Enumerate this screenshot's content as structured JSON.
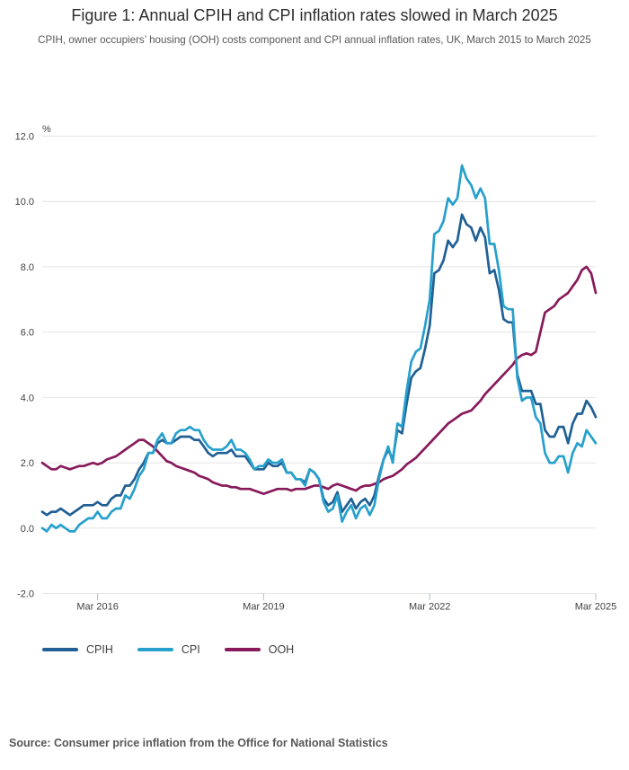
{
  "chart_data": {
    "type": "line",
    "title": "Figure 1: Annual CPIH and CPI inflation rates slowed in March 2025",
    "subtitle": "CPIH, owner occupiers’ housing (OOH) costs component and CPI annual inflation rates, UK, March 2015 to March 2025",
    "ylabel": "%",
    "x_unit": "month",
    "x_start_label": "Mar 2015",
    "x_end_label": "Mar 2025",
    "grid": "horizontal",
    "legend_position": "bottom-left",
    "x_axis": {
      "tick_labels": [
        "Mar 2016",
        "Mar 2019",
        "Mar 2022",
        "Mar 2025"
      ],
      "tick_month_indices": [
        12,
        48,
        84,
        120
      ]
    },
    "y_axis": {
      "min": -2.0,
      "max": 12.0,
      "tick_values": [
        -2,
        0,
        2,
        4,
        6,
        8,
        10,
        12
      ],
      "tick_labels": [
        "-2.0",
        "0.0",
        "2.0",
        "4.0",
        "6.0",
        "8.0",
        "10.0",
        "12.0"
      ]
    },
    "colors": {
      "cpih": "#206095",
      "cpi": "#27A0CC",
      "ooh": "#871A5B",
      "grid": "#e4e4e4",
      "tick": "#b7c0c7",
      "axis_text": "#414042"
    },
    "series": [
      {
        "name": "CPIH",
        "color": "#206095",
        "values": [
          0.5,
          0.4,
          0.5,
          0.5,
          0.6,
          0.5,
          0.4,
          0.5,
          0.6,
          0.7,
          0.7,
          0.7,
          0.8,
          0.7,
          0.7,
          0.9,
          1.0,
          1.0,
          1.3,
          1.3,
          1.5,
          1.8,
          2.0,
          2.3,
          2.3,
          2.6,
          2.7,
          2.6,
          2.6,
          2.7,
          2.8,
          2.8,
          2.8,
          2.7,
          2.7,
          2.5,
          2.3,
          2.2,
          2.3,
          2.3,
          2.3,
          2.4,
          2.2,
          2.2,
          2.2,
          2.0,
          1.8,
          1.8,
          1.8,
          2.0,
          1.9,
          1.9,
          2.0,
          1.7,
          1.7,
          1.5,
          1.5,
          1.4,
          1.8,
          1.7,
          1.5,
          0.9,
          0.7,
          0.8,
          1.1,
          0.5,
          0.7,
          0.9,
          0.6,
          0.8,
          0.9,
          0.7,
          1.0,
          1.6,
          2.1,
          2.4,
          2.1,
          3.0,
          2.9,
          3.8,
          4.6,
          4.8,
          4.9,
          5.5,
          6.2,
          7.8,
          7.9,
          8.2,
          8.8,
          8.6,
          8.8,
          9.6,
          9.3,
          9.2,
          8.8,
          9.2,
          8.9,
          7.8,
          7.9,
          7.3,
          6.4,
          6.3,
          6.3,
          4.7,
          4.2,
          4.2,
          4.2,
          3.8,
          3.8,
          3.0,
          2.8,
          2.8,
          3.1,
          3.1,
          2.6,
          3.2,
          3.5,
          3.5,
          3.9,
          3.7,
          3.4
        ]
      },
      {
        "name": "CPI",
        "color": "#27A0CC",
        "values": [
          0.0,
          -0.1,
          0.1,
          0.0,
          0.1,
          0.0,
          -0.1,
          -0.1,
          0.1,
          0.2,
          0.3,
          0.3,
          0.5,
          0.3,
          0.3,
          0.5,
          0.6,
          0.6,
          1.0,
          0.9,
          1.2,
          1.6,
          1.8,
          2.3,
          2.3,
          2.7,
          2.9,
          2.6,
          2.6,
          2.9,
          3.0,
          3.0,
          3.1,
          3.0,
          3.0,
          2.7,
          2.5,
          2.4,
          2.4,
          2.4,
          2.5,
          2.7,
          2.4,
          2.4,
          2.3,
          2.1,
          1.8,
          1.9,
          1.9,
          2.1,
          2.0,
          2.0,
          2.1,
          1.7,
          1.7,
          1.5,
          1.5,
          1.3,
          1.8,
          1.7,
          1.5,
          0.8,
          0.5,
          0.6,
          1.0,
          0.2,
          0.5,
          0.7,
          0.3,
          0.6,
          0.7,
          0.4,
          0.7,
          1.5,
          2.1,
          2.5,
          2.0,
          3.2,
          3.1,
          4.2,
          5.1,
          5.4,
          5.5,
          6.2,
          7.0,
          9.0,
          9.1,
          9.4,
          10.1,
          9.9,
          10.1,
          11.1,
          10.7,
          10.5,
          10.1,
          10.4,
          10.1,
          8.7,
          8.7,
          7.9,
          6.8,
          6.7,
          6.7,
          4.6,
          3.9,
          4.0,
          4.0,
          3.4,
          3.2,
          2.3,
          2.0,
          2.0,
          2.2,
          2.2,
          1.7,
          2.3,
          2.6,
          2.5,
          3.0,
          2.8,
          2.6
        ]
      },
      {
        "name": "OOH",
        "color": "#871A5B",
        "values": [
          2.0,
          1.9,
          1.8,
          1.8,
          1.9,
          1.85,
          1.8,
          1.85,
          1.9,
          1.9,
          1.95,
          2.0,
          1.95,
          2.0,
          2.1,
          2.15,
          2.2,
          2.3,
          2.4,
          2.5,
          2.6,
          2.7,
          2.7,
          2.6,
          2.5,
          2.35,
          2.2,
          2.05,
          2.0,
          1.9,
          1.85,
          1.8,
          1.75,
          1.7,
          1.6,
          1.55,
          1.5,
          1.4,
          1.35,
          1.3,
          1.3,
          1.25,
          1.25,
          1.2,
          1.2,
          1.2,
          1.15,
          1.1,
          1.05,
          1.1,
          1.15,
          1.2,
          1.2,
          1.2,
          1.15,
          1.2,
          1.2,
          1.2,
          1.25,
          1.3,
          1.3,
          1.25,
          1.2,
          1.3,
          1.35,
          1.3,
          1.25,
          1.2,
          1.15,
          1.25,
          1.3,
          1.3,
          1.35,
          1.4,
          1.5,
          1.55,
          1.6,
          1.7,
          1.8,
          1.95,
          2.05,
          2.15,
          2.3,
          2.45,
          2.6,
          2.75,
          2.9,
          3.05,
          3.2,
          3.3,
          3.4,
          3.5,
          3.55,
          3.6,
          3.75,
          3.9,
          4.1,
          4.25,
          4.4,
          4.55,
          4.7,
          4.85,
          5.0,
          5.2,
          5.3,
          5.35,
          5.3,
          5.4,
          6.0,
          6.6,
          6.7,
          6.8,
          7.0,
          7.1,
          7.2,
          7.4,
          7.6,
          7.9,
          8.0,
          7.8,
          7.2
        ]
      }
    ]
  },
  "footer": {
    "source": "Source: Consumer price inflation from the Office for National Statistics"
  }
}
